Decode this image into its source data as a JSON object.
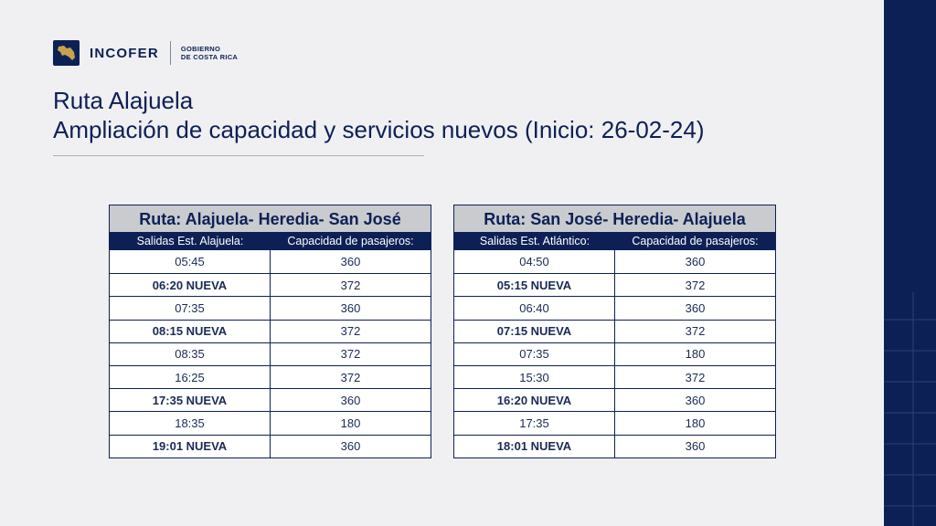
{
  "logo": {
    "name": "INCOFER",
    "gov_line1": "GOBIERNO",
    "gov_line2": "DE COSTA RICA"
  },
  "title": {
    "line1": "Ruta Alajuela",
    "line2": "Ampliación de capacidad y servicios nuevos (Inicio: 26-02-24)"
  },
  "colors": {
    "navy": "#0d2056",
    "gold": "#c8a24a",
    "background": "#f0f0f2",
    "header_gray": "#c9cbcf"
  },
  "tables": [
    {
      "title": "Ruta: Alajuela- Heredia- San José",
      "col1_header": "Salidas Est. Alajuela:",
      "col2_header": "Capacidad de pasajeros:",
      "rows": [
        {
          "time": "05:45",
          "capacity": "360",
          "new": false
        },
        {
          "time": "06:20 NUEVA",
          "capacity": "372",
          "new": true
        },
        {
          "time": "07:35",
          "capacity": "360",
          "new": false
        },
        {
          "time": "08:15 NUEVA",
          "capacity": "372",
          "new": true
        },
        {
          "time": "08:35",
          "capacity": "372",
          "new": false
        },
        {
          "time": "16:25",
          "capacity": "372",
          "new": false
        },
        {
          "time": "17:35 NUEVA",
          "capacity": "360",
          "new": true
        },
        {
          "time": "18:35",
          "capacity": "180",
          "new": false
        },
        {
          "time": "19:01 NUEVA",
          "capacity": "360",
          "new": true
        }
      ]
    },
    {
      "title": "Ruta: San José- Heredia- Alajuela",
      "col1_header": "Salidas Est. Atlántico:",
      "col2_header": "Capacidad de pasajeros:",
      "rows": [
        {
          "time": "04:50",
          "capacity": "360",
          "new": false
        },
        {
          "time": "05:15 NUEVA",
          "capacity": "372",
          "new": true
        },
        {
          "time": "06:40",
          "capacity": "360",
          "new": false
        },
        {
          "time": "07:15 NUEVA",
          "capacity": "372",
          "new": true
        },
        {
          "time": "07:35",
          "capacity": "180",
          "new": false
        },
        {
          "time": "15:30",
          "capacity": "372",
          "new": false
        },
        {
          "time": "16:20 NUEVA",
          "capacity": "360",
          "new": true
        },
        {
          "time": "17:35",
          "capacity": "180",
          "new": false
        },
        {
          "time": "18:01 NUEVA",
          "capacity": "360",
          "new": true
        }
      ]
    }
  ]
}
